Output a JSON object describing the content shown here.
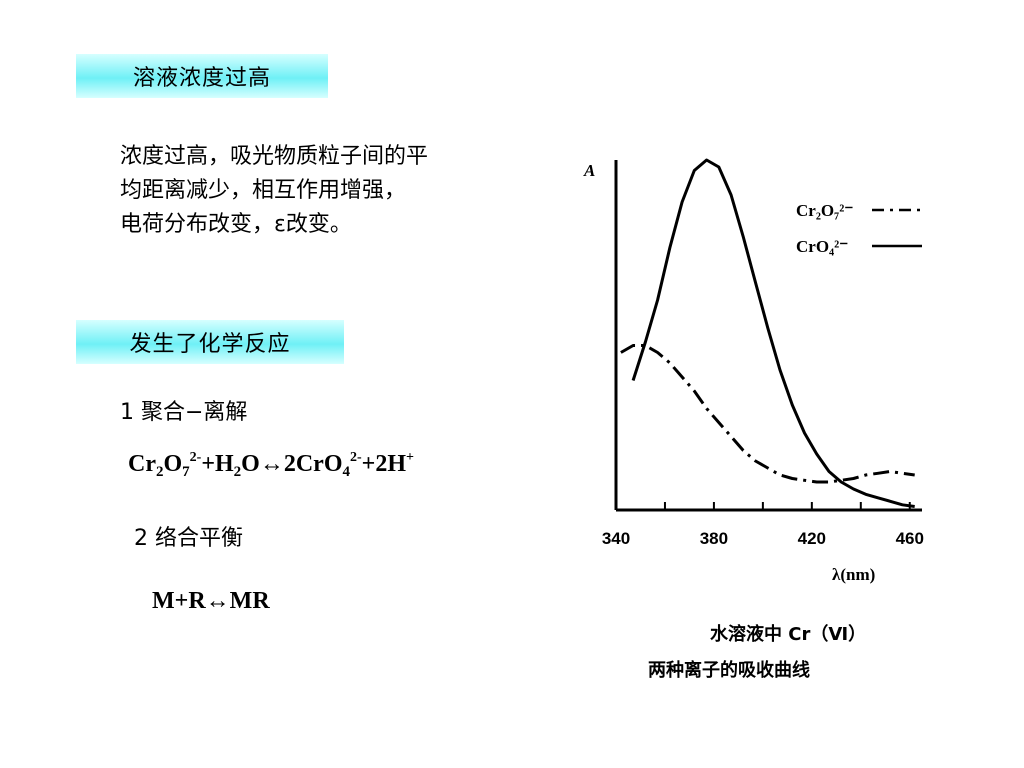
{
  "section1": {
    "heading": "溶液浓度过高",
    "lines": [
      "浓度过高，吸光物质粒子间的平",
      "均距离减少，相互作用增强，",
      "电荷分布改变，ε改变。"
    ]
  },
  "section2": {
    "heading": "发生了化学反应",
    "item1_label": "1 聚合−离解",
    "eq1": {
      "p1": "Cr",
      "s1": "2",
      "p2": "O",
      "s2": "7",
      "sup1": "2-",
      "p3": "+H",
      "s3": "2",
      "p4": "O↔2CrO",
      "s4": "4",
      "sup2": "2-",
      "p5": "+2H",
      "sup3": "+"
    },
    "item2_label": "2 络合平衡",
    "eq2": "M+R↔MR"
  },
  "chart_data": {
    "type": "line",
    "ylabel": "A",
    "xlabel": "λ(nm)",
    "x_ticks": [
      "340",
      "380",
      "420",
      "460"
    ],
    "xlim": [
      340,
      465
    ],
    "ylim": [
      0,
      1
    ],
    "series": [
      {
        "name": "CrO₄²⁻",
        "style": "solid",
        "x": [
          347,
          352,
          357,
          362,
          367,
          372,
          377,
          382,
          387,
          392,
          397,
          402,
          407,
          412,
          417,
          422,
          427,
          432,
          437,
          442,
          447,
          452,
          457,
          462
        ],
        "y": [
          0.37,
          0.48,
          0.6,
          0.75,
          0.88,
          0.97,
          1.0,
          0.98,
          0.9,
          0.78,
          0.65,
          0.52,
          0.4,
          0.3,
          0.22,
          0.16,
          0.11,
          0.08,
          0.06,
          0.045,
          0.035,
          0.025,
          0.015,
          0.01
        ]
      },
      {
        "name": "Cr₂O₇²⁻",
        "style": "dash-dot",
        "x": [
          342,
          347,
          352,
          357,
          362,
          367,
          372,
          377,
          382,
          387,
          392,
          397,
          402,
          407,
          412,
          417,
          422,
          427,
          432,
          437,
          442,
          447,
          452,
          457,
          462
        ],
        "y": [
          0.45,
          0.47,
          0.47,
          0.45,
          0.42,
          0.38,
          0.34,
          0.29,
          0.25,
          0.21,
          0.17,
          0.14,
          0.12,
          0.1,
          0.09,
          0.085,
          0.08,
          0.08,
          0.085,
          0.09,
          0.1,
          0.105,
          0.11,
          0.105,
          0.1
        ]
      }
    ],
    "legend": [
      "Cr₂O₇²⁻",
      "CrO₄²⁻"
    ],
    "legend_position": "top-right",
    "grid": false,
    "caption_lines": [
      "水溶液中 Cr（Ⅵ）",
      "两种离子的吸收曲线"
    ]
  },
  "colors": {
    "heading_bg": "#6ff0f6",
    "line": "#000000"
  }
}
